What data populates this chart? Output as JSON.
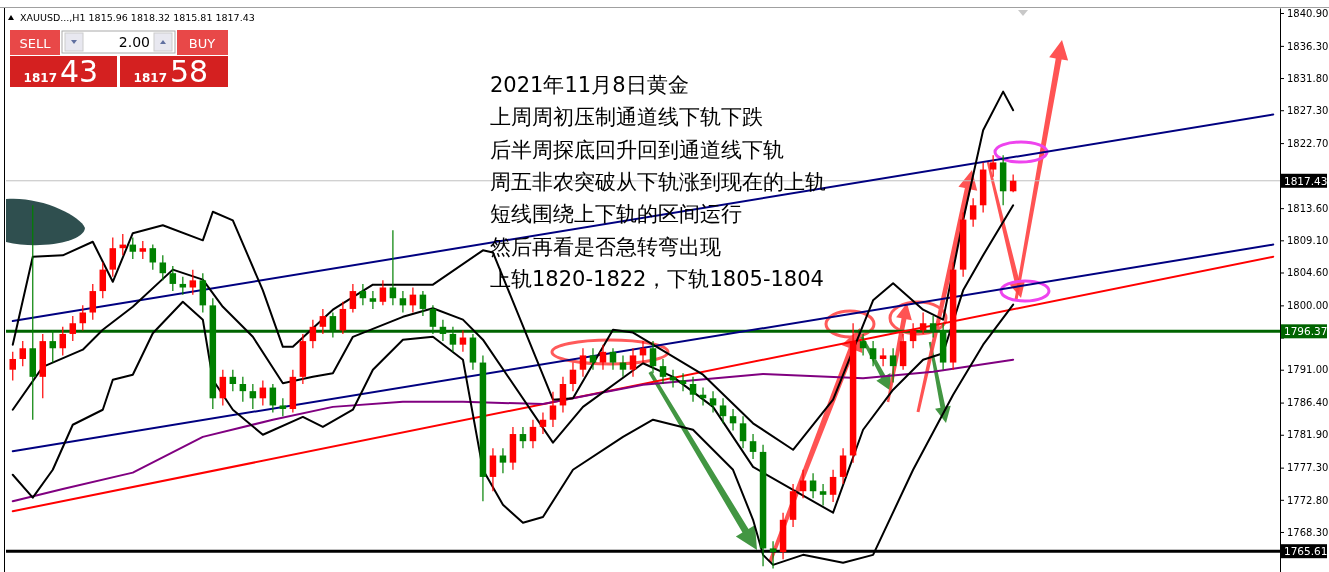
{
  "chart_data": {
    "type": "candlestick",
    "title": "2021年11月8日黄金",
    "categories": [
      null,
      null,
      null,
      null,
      null,
      null,
      null,
      null,
      null,
      null,
      null,
      null,
      null,
      null,
      null,
      null,
      null,
      null,
      null,
      null,
      null,
      null,
      null,
      null,
      null,
      null,
      null,
      null,
      null,
      null,
      null,
      null,
      null,
      null,
      null,
      null,
      null,
      null,
      null,
      null,
      null,
      null,
      null,
      null,
      null,
      null,
      null,
      null,
      null,
      null,
      null,
      null,
      null,
      null,
      null,
      null,
      null,
      null,
      null,
      null,
      null,
      null,
      null,
      null,
      null,
      null,
      null,
      null,
      null,
      null,
      null,
      null,
      null,
      null,
      null,
      null,
      null,
      null,
      null,
      null,
      null,
      null,
      null,
      null,
      null,
      null,
      null,
      null,
      null,
      null,
      null,
      null,
      null,
      null,
      null,
      null,
      null,
      null,
      null,
      null,
      null,
      null,
      null,
      null,
      null,
      null,
      null,
      null,
      null,
      null,
      null,
      null,
      null,
      null,
      null,
      null,
      null,
      null,
      null,
      null,
      null,
      null,
      null,
      null,
      null,
      null,
      null
    ],
    "ohlc": [
      [
        1791,
        1793.5,
        1789.5,
        1792.5
      ],
      [
        1792.5,
        1795,
        1791.5,
        1794
      ],
      [
        1794,
        1814,
        1784,
        1790
      ],
      [
        1790,
        1796,
        1787,
        1795
      ],
      [
        1795,
        1796.5,
        1792,
        1794
      ],
      [
        1794,
        1797,
        1793,
        1796
      ],
      [
        1796,
        1798.5,
        1795,
        1797.5
      ],
      [
        1797.5,
        1800,
        1796.5,
        1799
      ],
      [
        1799,
        1803,
        1798,
        1802
      ],
      [
        1802,
        1806,
        1801,
        1805
      ],
      [
        1805,
        1809.5,
        1804,
        1808
      ],
      [
        1808,
        1810,
        1807,
        1808.5
      ],
      [
        1808.5,
        1809.5,
        1806.5,
        1807.5
      ],
      [
        1807.5,
        1809,
        1806.5,
        1808
      ],
      [
        1808,
        1808.5,
        1805,
        1806
      ],
      [
        1806,
        1807,
        1803.5,
        1804.5
      ],
      [
        1804.5,
        1805.5,
        1802,
        1803
      ],
      [
        1803,
        1804,
        1801.5,
        1802.5
      ],
      [
        1802.5,
        1805,
        1801.5,
        1803.5
      ],
      [
        1803.5,
        1804.5,
        1799,
        1800
      ],
      [
        1800,
        1801,
        1785.5,
        1787
      ],
      [
        1787,
        1791,
        1786,
        1790
      ],
      [
        1790,
        1791,
        1788,
        1789
      ],
      [
        1789,
        1790,
        1786.5,
        1788
      ],
      [
        1788,
        1789,
        1785.5,
        1787
      ],
      [
        1787,
        1789.5,
        1786,
        1788.5
      ],
      [
        1788.5,
        1789,
        1785,
        1786
      ],
      [
        1786,
        1787,
        1784.5,
        1785.5
      ],
      [
        1785.5,
        1791,
        1785,
        1790
      ],
      [
        1790,
        1796,
        1789,
        1795
      ],
      [
        1795,
        1798,
        1794,
        1797
      ],
      [
        1797,
        1799.5,
        1796,
        1798.5
      ],
      [
        1798.5,
        1799,
        1795.5,
        1796.5
      ],
      [
        1796.5,
        1800.5,
        1796,
        1799.5
      ],
      [
        1799.5,
        1803,
        1799,
        1802
      ],
      [
        1802,
        1803,
        1800,
        1801
      ],
      [
        1801,
        1802,
        1799.5,
        1800.5
      ],
      [
        1800.5,
        1803.5,
        1800,
        1802.5
      ],
      [
        1802.5,
        1810.5,
        1800,
        1801
      ],
      [
        1801,
        1802,
        1799,
        1800
      ],
      [
        1800,
        1802.5,
        1799,
        1801.5
      ],
      [
        1801.5,
        1802,
        1798.5,
        1799.5
      ],
      [
        1799.5,
        1800,
        1796,
        1797
      ],
      [
        1797,
        1798,
        1795,
        1796
      ],
      [
        1796,
        1797,
        1793.5,
        1794.5
      ],
      [
        1794.5,
        1796.5,
        1793.5,
        1795.5
      ],
      [
        1795.5,
        1796,
        1791,
        1792
      ],
      [
        1792,
        1793,
        1772.6,
        1776
      ],
      [
        1776,
        1780,
        1774,
        1779
      ],
      [
        1779,
        1780,
        1776.5,
        1778
      ],
      [
        1778,
        1783,
        1777,
        1782
      ],
      [
        1782,
        1783,
        1780,
        1781
      ],
      [
        1781,
        1784,
        1780,
        1783
      ],
      [
        1783,
        1785,
        1782,
        1784
      ],
      [
        1784,
        1787.9,
        1783,
        1786
      ],
      [
        1786,
        1790,
        1785,
        1789
      ],
      [
        1789,
        1792,
        1788,
        1791
      ],
      [
        1791,
        1794,
        1790,
        1793
      ],
      [
        1793,
        1794,
        1791,
        1792
      ],
      [
        1792,
        1794.5,
        1791,
        1793.5
      ],
      [
        1793.5,
        1794,
        1791,
        1792
      ],
      [
        1792,
        1793,
        1790,
        1791
      ],
      [
        1791,
        1794,
        1790,
        1793
      ],
      [
        1793,
        1795,
        1792,
        1794
      ],
      [
        1794,
        1795,
        1790.5,
        1791.5
      ],
      [
        1791.5,
        1792.5,
        1789,
        1790
      ],
      [
        1790,
        1791,
        1788.5,
        1789.5
      ],
      [
        1789.5,
        1790.5,
        1788,
        1789
      ],
      [
        1789,
        1790,
        1786.5,
        1787.5
      ],
      [
        1787.5,
        1788.5,
        1786,
        1787
      ],
      [
        1787,
        1788,
        1785,
        1786
      ],
      [
        1786,
        1787,
        1783.5,
        1784.5
      ],
      [
        1784.5,
        1785.5,
        1782.5,
        1783.5
      ],
      [
        1783.5,
        1784.5,
        1780,
        1781
      ],
      [
        1781,
        1782,
        1778.5,
        1779.5
      ],
      [
        1779.5,
        1780.5,
        1763.5,
        1766
      ],
      [
        1766,
        1767,
        1763.2,
        1765.5
      ],
      [
        1765.5,
        1771,
        1764.5,
        1770
      ],
      [
        1770,
        1775,
        1769,
        1774
      ],
      [
        1774,
        1777,
        1773,
        1775.5
      ],
      [
        1775.5,
        1776.5,
        1773,
        1774
      ],
      [
        1774,
        1775,
        1772,
        1773.5
      ],
      [
        1773.5,
        1777,
        1772.5,
        1776
      ],
      [
        1776,
        1780,
        1775,
        1779
      ],
      [
        1779,
        1797.5,
        1778,
        1795
      ],
      [
        1795,
        1796,
        1793,
        1794
      ],
      [
        1794,
        1795,
        1791.5,
        1792.5
      ],
      [
        1792.5,
        1794,
        1791.5,
        1793
      ],
      [
        1793,
        1794,
        1789.2,
        1791.5
      ],
      [
        1791.5,
        1796,
        1791,
        1795
      ],
      [
        1795,
        1797.5,
        1794,
        1796.5
      ],
      [
        1796.5,
        1799,
        1796,
        1797.5
      ],
      [
        1797.5,
        1798.5,
        1795.5,
        1796.5
      ],
      [
        1796.5,
        1797.5,
        1791,
        1792
      ],
      [
        1792,
        1806,
        1791,
        1805
      ],
      [
        1805,
        1813,
        1804,
        1812
      ],
      [
        1812,
        1815,
        1811,
        1814
      ],
      [
        1814,
        1820,
        1813,
        1819
      ],
      [
        1819,
        1821,
        1818,
        1820
      ],
      [
        1820,
        1821,
        1814,
        1815.96
      ],
      [
        1815.96,
        1818.32,
        1815.81,
        1817.43
      ],
      null,
      null,
      null,
      null,
      null,
      null,
      null,
      null,
      null,
      null,
      null,
      null,
      null,
      null,
      null,
      null,
      null,
      null,
      null,
      null,
      null,
      null,
      null,
      null,
      null,
      null
    ],
    "series": [
      {
        "type": "line",
        "color": "#000080",
        "values": [
          1797.8,
          null,
          null,
          null,
          null,
          null,
          null,
          null,
          null,
          null,
          null,
          null,
          null,
          null,
          null,
          null,
          null,
          null,
          null,
          null,
          null,
          null,
          null,
          null,
          null,
          null,
          null,
          null,
          null,
          null,
          null,
          null,
          null,
          null,
          null,
          null,
          null,
          null,
          null,
          null,
          null,
          null,
          null,
          null,
          null,
          null,
          null,
          null,
          null,
          null,
          null,
          null,
          null,
          null,
          null,
          null,
          null,
          null,
          null,
          null,
          null,
          null,
          null,
          null,
          null,
          null,
          null,
          null,
          null,
          null,
          null,
          null,
          null,
          null,
          null,
          null,
          null,
          null,
          null,
          null,
          null,
          null,
          null,
          null,
          null,
          null,
          null,
          null,
          null,
          null,
          null,
          null,
          null,
          null,
          null,
          null,
          null,
          null,
          null,
          null,
          null,
          null,
          null,
          null,
          null,
          null,
          null,
          null,
          null,
          null,
          null,
          null,
          null,
          null,
          null,
          null,
          null,
          null,
          null,
          null,
          null,
          null,
          null,
          null,
          null,
          null,
          1826.7
        ]
      },
      {
        "type": "line",
        "color": "#000080",
        "values": [
          1779.6,
          null,
          null,
          null,
          null,
          null,
          null,
          null,
          null,
          null,
          null,
          null,
          null,
          null,
          null,
          null,
          null,
          null,
          null,
          null,
          null,
          null,
          null,
          null,
          null,
          null,
          null,
          null,
          null,
          null,
          null,
          null,
          null,
          null,
          null,
          null,
          null,
          null,
          null,
          null,
          null,
          null,
          null,
          null,
          null,
          null,
          null,
          null,
          null,
          null,
          null,
          null,
          null,
          null,
          null,
          null,
          null,
          null,
          null,
          null,
          null,
          null,
          null,
          null,
          null,
          null,
          null,
          null,
          null,
          null,
          null,
          null,
          null,
          null,
          null,
          null,
          null,
          null,
          null,
          null,
          null,
          null,
          null,
          null,
          null,
          null,
          null,
          null,
          null,
          null,
          null,
          null,
          null,
          null,
          null,
          null,
          null,
          null,
          null,
          null,
          null,
          null,
          null,
          null,
          null,
          null,
          null,
          null,
          null,
          null,
          null,
          null,
          null,
          null,
          null,
          null,
          null,
          null,
          null,
          null,
          null,
          null,
          null,
          null,
          null,
          null,
          1808.5
        ]
      },
      {
        "type": "line",
        "color": "#ff0000",
        "values": [
          1771.2,
          null,
          null,
          null,
          null,
          null,
          null,
          null,
          null,
          null,
          null,
          null,
          null,
          null,
          null,
          null,
          null,
          null,
          null,
          null,
          null,
          null,
          null,
          null,
          null,
          null,
          null,
          null,
          null,
          null,
          null,
          null,
          null,
          null,
          null,
          null,
          null,
          null,
          null,
          null,
          null,
          null,
          null,
          null,
          null,
          null,
          null,
          null,
          null,
          null,
          null,
          null,
          null,
          null,
          null,
          null,
          null,
          null,
          null,
          null,
          null,
          null,
          null,
          null,
          null,
          null,
          null,
          null,
          null,
          null,
          null,
          null,
          null,
          null,
          null,
          null,
          null,
          null,
          null,
          null,
          null,
          null,
          null,
          null,
          null,
          null,
          null,
          null,
          null,
          null,
          null,
          null,
          null,
          null,
          null,
          null,
          null,
          null,
          null,
          null,
          null,
          null,
          null,
          null,
          null,
          null,
          null,
          null,
          null,
          null,
          null,
          null,
          null,
          null,
          null,
          null,
          null,
          null,
          null,
          null,
          null,
          null,
          null,
          null,
          null,
          null,
          1806.8
        ]
      },
      {
        "type": "line",
        "color": "#800080",
        "values": [
          1772.6,
          null,
          null,
          null,
          null,
          1774.3,
          null,
          null,
          null,
          null,
          null,
          null,
          1776.6,
          null,
          null,
          null,
          null,
          null,
          null,
          1781.6,
          null,
          null,
          null,
          null,
          null,
          null,
          1784.0,
          null,
          null,
          null,
          null,
          null,
          1785.8,
          null,
          null,
          null,
          null,
          null,
          null,
          1786.5,
          null,
          null,
          null,
          null,
          null,
          1786.5,
          null,
          null,
          null,
          null,
          null,
          null,
          null,
          1786.2,
          null,
          null,
          null,
          null,
          null,
          null,
          null,
          null,
          null,
          1788.9,
          null,
          null,
          null,
          null,
          null,
          null,
          null,
          null,
          null,
          null,
          null,
          1790.4,
          null,
          null,
          null,
          null,
          null,
          null,
          null,
          null,
          null,
          1789.8,
          null,
          null,
          null,
          null,
          null,
          null,
          1790.7,
          null,
          null,
          null,
          null,
          null,
          null,
          null,
          1792.4,
          null,
          null,
          null,
          null,
          null,
          null,
          null,
          null,
          null,
          null,
          null,
          null,
          null,
          null,
          null,
          null,
          null,
          null,
          null,
          null,
          null,
          null,
          null,
          null,
          null,
          null
        ]
      },
      {
        "type": "line",
        "color": "#000000",
        "values": [
          1794.5,
          null,
          1806.8,
          null,
          null,
          1807.0,
          null,
          null,
          1808.9,
          null,
          1803.3,
          null,
          1810.1,
          null,
          null,
          1811.2,
          null,
          null,
          null,
          1809.1,
          1813.1,
          null,
          1811.9,
          null,
          null,
          1802.1,
          null,
          1794.2,
          1794.2,
          null,
          null,
          null,
          1799.4,
          null,
          null,
          null,
          1802.9,
          null,
          null,
          null,
          null,
          null,
          1802.9,
          null,
          null,
          null,
          null,
          1807.7,
          1807.4,
          null,
          null,
          null,
          null,
          null,
          1786.8,
          null,
          1787.0,
          null,
          null,
          null,
          1796.6,
          null,
          1796.2,
          null,
          null,
          null,
          null,
          null,
          null,
          1790.3,
          null,
          null,
          null,
          null,
          1783.5,
          null,
          null,
          null,
          1779.8,
          null,
          null,
          null,
          1786.8,
          null,
          null,
          null,
          1800.7,
          null,
          1803.1,
          null,
          null,
          1799.4,
          null,
          1798.0,
          null,
          1811.9,
          null,
          1824.5,
          null,
          1829.9,
          1827.3,
          null,
          null,
          null,
          null,
          null,
          null,
          null,
          null,
          null,
          null,
          null,
          null,
          null,
          null,
          null,
          null,
          null,
          null,
          null,
          null,
          null,
          null,
          null,
          null,
          null,
          null
        ]
      },
      {
        "type": "line",
        "color": "#000000",
        "values": [
          1785.4,
          null,
          null,
          1791.4,
          null,
          null,
          null,
          1793.8,
          null,
          1796.6,
          null,
          null,
          1799.8,
          null,
          null,
          null,
          1805.0,
          null,
          null,
          1803.6,
          null,
          1799.8,
          null,
          null,
          1795.6,
          null,
          null,
          1789.1,
          null,
          null,
          1790.0,
          null,
          1790.5,
          null,
          1795.6,
          null,
          null,
          null,
          null,
          1798.4,
          null,
          null,
          1799.6,
          null,
          null,
          1798.0,
          null,
          1795.2,
          null,
          null,
          null,
          null,
          null,
          null,
          1780.8,
          null,
          null,
          1785.8,
          null,
          null,
          null,
          null,
          null,
          1791.9,
          null,
          null,
          1790.0,
          null,
          null,
          null,
          1785.8,
          null,
          null,
          null,
          1777.4,
          null,
          null,
          null,
          1774.2,
          null,
          null,
          null,
          1771.0,
          null,
          null,
          1782.6,
          null,
          null,
          1788.2,
          null,
          null,
          1792.4,
          null,
          1793.3,
          null,
          1802.1,
          null,
          1807.0,
          null,
          null,
          1814.0,
          null,
          null,
          null,
          null,
          null,
          null,
          null,
          null,
          null,
          null,
          null,
          null,
          null,
          null,
          null,
          null,
          null,
          null,
          null,
          null,
          null,
          null,
          null,
          null,
          null,
          null
        ]
      },
      {
        "type": "line",
        "color": "#000000",
        "values": [
          1776.3,
          null,
          1773.1,
          null,
          1777.0,
          null,
          1783.3,
          null,
          null,
          1785.4,
          1789.6,
          null,
          1790.3,
          null,
          1796.1,
          null,
          null,
          1800.5,
          null,
          1798.0,
          1789.6,
          null,
          1785.4,
          null,
          null,
          1781.9,
          null,
          null,
          null,
          1784.4,
          null,
          1783.0,
          null,
          null,
          1785.4,
          null,
          1791.0,
          null,
          null,
          1795.2,
          null,
          null,
          1795.6,
          null,
          null,
          1792.4,
          null,
          1777.0,
          null,
          1772.1,
          null,
          1769.6,
          null,
          1770.4,
          null,
          null,
          1777.0,
          null,
          null,
          null,
          null,
          1781.6,
          null,
          null,
          1784.0,
          null,
          null,
          null,
          1782.6,
          null,
          null,
          null,
          1777.0,
          null,
          1770.0,
          1765.1,
          1763.7,
          null,
          null,
          1765.1,
          null,
          null,
          null,
          1764.0,
          null,
          null,
          1765.1,
          null,
          null,
          null,
          1777.0,
          null,
          null,
          null,
          1787.5,
          null,
          null,
          1794.5,
          null,
          null,
          1800.1,
          null,
          null,
          null,
          null,
          null,
          null,
          null,
          null,
          null,
          null,
          null,
          null,
          null,
          null,
          null,
          null,
          null,
          null,
          null,
          null,
          null,
          null,
          null,
          null,
          null,
          null
        ]
      }
    ],
    "ylim": [
      1762.7,
      1841.6
    ],
    "yticks": [
      {
        "value": 1840.9,
        "label": "1840.90"
      },
      {
        "value": 1836.3,
        "label": "1836.30"
      },
      {
        "value": 1831.8,
        "label": "1831.80"
      },
      {
        "value": 1827.3,
        "label": "1827.30"
      },
      {
        "value": 1822.7,
        "label": "1822.70"
      },
      {
        "value": 1818.2,
        "label": null
      },
      {
        "value": 1813.6,
        "label": "1813.60"
      },
      {
        "value": 1809.1,
        "label": "1809.10"
      },
      {
        "value": 1804.6,
        "label": "1804.60"
      },
      {
        "value": 1800,
        "label": "1800.00"
      },
      {
        "value": 1795.5,
        "label": null
      },
      {
        "value": 1791,
        "label": "1791.00"
      },
      {
        "value": 1786.4,
        "label": "1786.40"
      },
      {
        "value": 1781.9,
        "label": "1781.90"
      },
      {
        "value": 1777.3,
        "label": "1777.30"
      },
      {
        "value": 1772.8,
        "label": "1772.80"
      },
      {
        "value": 1768.3,
        "label": "1768.30"
      }
    ],
    "ref_lines": [
      {
        "axis": "y",
        "value": 1796.37,
        "label": "1796.37",
        "color": "#006400"
      },
      {
        "axis": "y",
        "value": 1765.61,
        "label": "1765.61",
        "color": "#000000"
      },
      {
        "axis": "y",
        "value": 1817.43,
        "label": "1817.43",
        "color": "#c0c0c0"
      }
    ],
    "annotations": [
      "XAUUSD...,H1  1815.96 1818.32 1815.81 1817.43",
      "上周周初压制通道线下轨下跌",
      "后半周探底回升回到通道线下轨",
      "周五非农突破从下轨涨到现在的上轨",
      "短线围绕上下轨的区间运行",
      "然后再看是否急转弯出现",
      "上轨1820-1822，下轨1805-1804",
      "SELL",
      "2.00",
      "BUY",
      "1817",
      "43",
      "1817",
      "58"
    ],
    "tick_labels": "y",
    "grid": false
  }
}
